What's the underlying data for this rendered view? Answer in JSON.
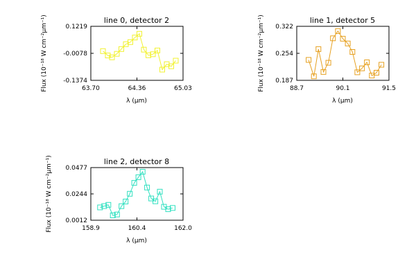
{
  "chart_data": [
    {
      "type": "line",
      "title": "line 0, detector 2",
      "xlabel": "λ (μm)",
      "ylabel": "Flux (10⁻¹⁸ W cm⁻²μm⁻¹)",
      "xlim": [
        63.7,
        65.03
      ],
      "ylim": [
        -0.1374,
        0.1219
      ],
      "xticks": [
        "63.70",
        "64.36",
        "65.03"
      ],
      "yticks": [
        "0.1219",
        "-0.0078",
        "-0.1374"
      ],
      "grid": false,
      "marker": "square",
      "color": "#f2f230",
      "series": [
        {
          "x": [
            63.875,
            63.945,
            64.005,
            64.075,
            64.14,
            64.205,
            64.27,
            64.335,
            64.4,
            64.465,
            64.53,
            64.595,
            64.66,
            64.73,
            64.795,
            64.86,
            64.925
          ],
          "y": [
            0.003,
            -0.018,
            -0.027,
            -0.01,
            0.013,
            0.036,
            0.046,
            0.068,
            0.086,
            0.01,
            -0.017,
            -0.012,
            0.006,
            -0.086,
            -0.06,
            -0.07,
            -0.043
          ]
        }
      ]
    },
    {
      "type": "line",
      "title": "line 1, detector 5",
      "xlabel": "λ (μm)",
      "ylabel": "Flux (10⁻¹⁸ W cm⁻²μm⁻¹)",
      "xlim": [
        88.7,
        91.5
      ],
      "ylim": [
        0.187,
        0.322
      ],
      "xticks": [
        "88.7",
        "90.1",
        "91.5"
      ],
      "yticks": [
        "0.322",
        "0.254",
        "0.187"
      ],
      "grid": false,
      "marker": "square",
      "color": "#e6a020",
      "series": [
        {
          "x": [
            89.06,
            89.22,
            89.36,
            89.51,
            89.66,
            89.8,
            89.95,
            90.1,
            90.25,
            90.39,
            90.54,
            90.68,
            90.83,
            90.98,
            91.12,
            91.27
          ],
          "y": [
            0.238,
            0.197,
            0.265,
            0.208,
            0.231,
            0.292,
            0.31,
            0.291,
            0.279,
            0.258,
            0.207,
            0.217,
            0.232,
            0.199,
            0.206,
            0.226
          ]
        }
      ]
    },
    {
      "type": "line",
      "title": "line 2, detector 8",
      "xlabel": "λ (μm)",
      "ylabel": "Flux (10⁻¹⁸ W cm⁻²μm⁻¹)",
      "xlim": [
        158.9,
        162.0
      ],
      "ylim": [
        0.0012,
        0.0477
      ],
      "xticks": [
        "158.9",
        "160.4",
        "162.0"
      ],
      "yticks": [
        "0.0477",
        "0.0244",
        "0.0012"
      ],
      "grid": false,
      "marker": "square",
      "color": "#30e0c0",
      "series": [
        {
          "x": [
            159.21,
            159.35,
            159.49,
            159.64,
            159.78,
            159.93,
            160.07,
            160.21,
            160.36,
            160.5,
            160.64,
            160.79,
            160.93,
            161.07,
            161.22,
            161.36,
            161.5,
            161.65
          ],
          "y": [
            0.0125,
            0.0137,
            0.0148,
            0.0055,
            0.0063,
            0.0136,
            0.0177,
            0.0246,
            0.0342,
            0.0392,
            0.044,
            0.0301,
            0.0204,
            0.0179,
            0.0264,
            0.0131,
            0.0109,
            0.012
          ]
        }
      ]
    }
  ]
}
